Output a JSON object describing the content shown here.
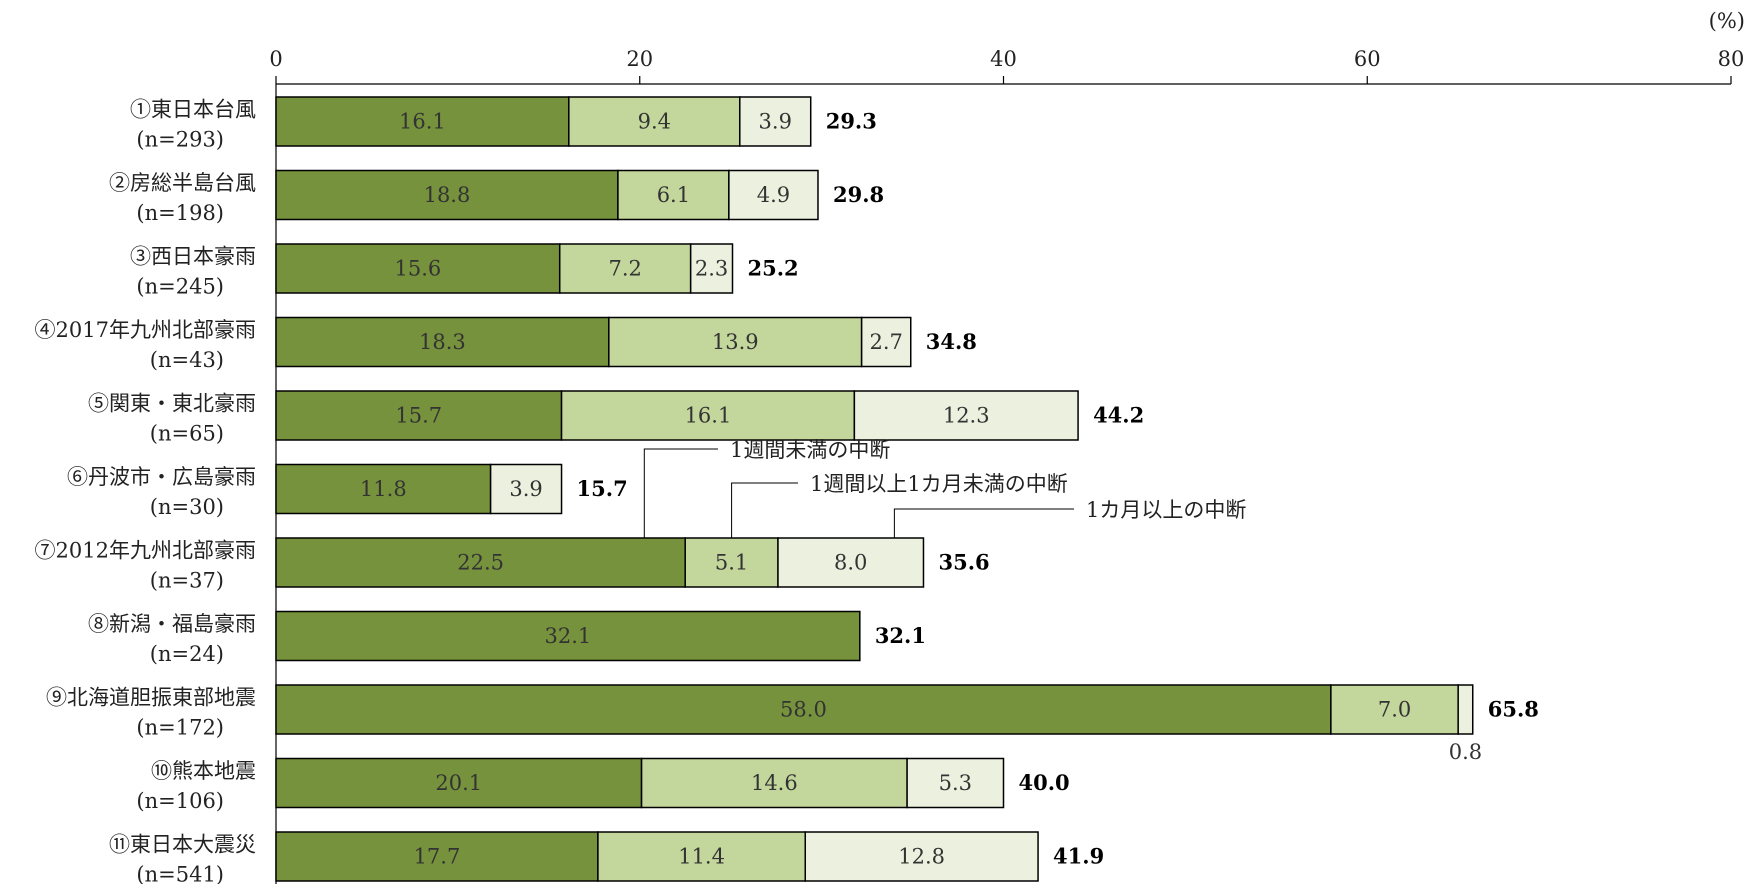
{
  "chart_data": {
    "type": "bar",
    "orientation": "horizontal",
    "stacked": true,
    "unit": "(%)",
    "xlim": [
      0,
      80
    ],
    "ticks": [
      0,
      20,
      40,
      60,
      80
    ],
    "grid": false,
    "categories": [
      {
        "name": "①東日本台風",
        "n": "(n=293)"
      },
      {
        "name": "②房総半島台風",
        "n": "(n=198)"
      },
      {
        "name": "③西日本豪雨",
        "n": "(n=245)"
      },
      {
        "name": "④2017年九州北部豪雨",
        "n": "(n=43)"
      },
      {
        "name": "⑤関東・東北豪雨",
        "n": "(n=65)"
      },
      {
        "name": "⑥丹波市・広島豪雨",
        "n": "(n=30)"
      },
      {
        "name": "⑦2012年九州北部豪雨",
        "n": "(n=37)"
      },
      {
        "name": "⑧新潟・福島豪雨",
        "n": "(n=24)"
      },
      {
        "name": "⑨北海道胆振東部地震",
        "n": "(n=172)"
      },
      {
        "name": "⑩熊本地震",
        "n": "(n=106)"
      },
      {
        "name": "⑪東日本大震災",
        "n": "(n=541)"
      }
    ],
    "series": [
      {
        "name": "1週間未満の中断",
        "color": "#76923c",
        "values": [
          16.1,
          18.8,
          15.6,
          18.3,
          15.7,
          11.8,
          22.5,
          32.1,
          58.0,
          20.1,
          17.7
        ]
      },
      {
        "name": "1週間以上1カ月未満の中断",
        "color": "#c3d69b",
        "values": [
          9.4,
          6.1,
          7.2,
          13.9,
          16.1,
          0,
          5.1,
          0,
          7.0,
          14.6,
          11.4
        ]
      },
      {
        "name": "1カ月以上の中断",
        "color": "#ebf1de",
        "values": [
          3.9,
          4.9,
          2.3,
          2.7,
          12.3,
          3.9,
          8.0,
          0,
          0.8,
          5.3,
          12.8
        ]
      }
    ],
    "totals": [
      "29.3",
      "29.8",
      "25.2",
      "34.8",
      "44.2",
      "15.7",
      "35.6",
      "32.1",
      "65.8",
      "40.0",
      "41.9"
    ],
    "segment_labels": [
      [
        "16.1",
        "9.4",
        "3.9"
      ],
      [
        "18.8",
        "6.1",
        "4.9"
      ],
      [
        "15.6",
        "7.2",
        "2.3"
      ],
      [
        "18.3",
        "13.9",
        "2.7"
      ],
      [
        "15.7",
        "16.1",
        "12.3"
      ],
      [
        "11.8",
        "",
        "3.9"
      ],
      [
        "22.5",
        "5.1",
        "8.0"
      ],
      [
        "32.1",
        "",
        ""
      ],
      [
        "58.0",
        "7.0",
        "0.8"
      ],
      [
        "20.1",
        "14.6",
        "5.3"
      ],
      [
        "17.7",
        "11.4",
        "12.8"
      ]
    ],
    "external_segment_label": {
      "category_index": 8,
      "series_index": 2,
      "text": "0.8"
    },
    "legend_callouts_row": 6
  }
}
